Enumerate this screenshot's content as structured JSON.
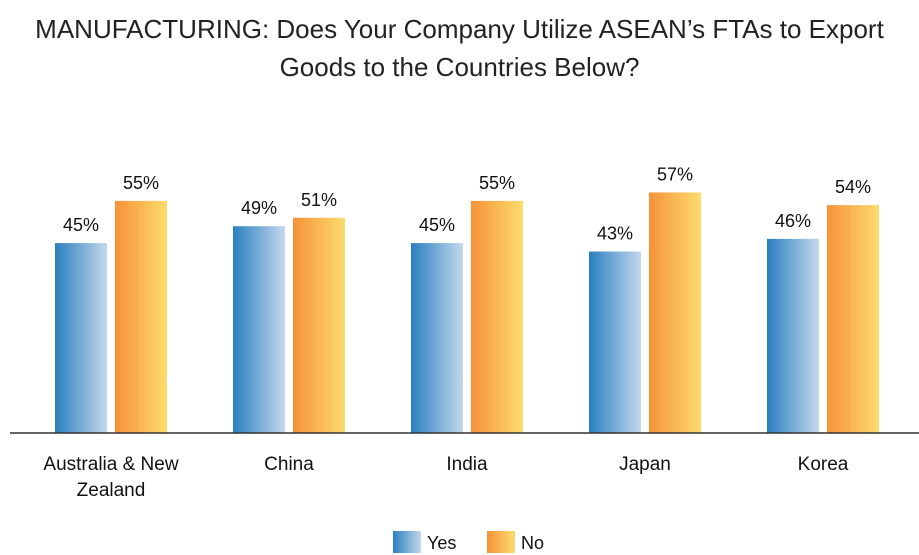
{
  "chart_data": {
    "type": "bar",
    "title": "MANUFACTURING: Does Your Company Utilize ASEAN’s FTAs to Export Goods to the Countries Below?",
    "categories": [
      "Australia & New Zealand",
      "China",
      "India",
      "Japan",
      "Korea"
    ],
    "series": [
      {
        "name": "Yes",
        "color": "#2a7fc0",
        "values": [
          45,
          49,
          45,
          43,
          46
        ],
        "value_labels": [
          "45%",
          "49%",
          "45%",
          "43%",
          "46%"
        ]
      },
      {
        "name": "No",
        "color": "#f6923a",
        "values": [
          55,
          51,
          55,
          57,
          54
        ],
        "value_labels": [
          "55%",
          "51%",
          "55%",
          "57%",
          "54%"
        ]
      }
    ],
    "ylim": [
      0,
      100
    ],
    "legend": "bottom"
  }
}
